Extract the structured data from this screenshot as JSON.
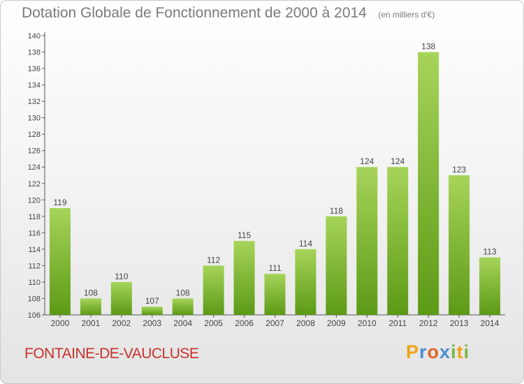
{
  "header": {
    "title": "Dotation Globale de Fonctionnement de 2000 à 2014",
    "subtitle": "(en milliers d'€)"
  },
  "footer": {
    "city": "FONTAINE-DE-VAUCLUSE",
    "brand": "Proxiti"
  },
  "colors": {
    "bar_light": "#a6d45a",
    "bar_dark": "#5c9a16",
    "title": "#7a7a7a",
    "city": "#c8312b"
  },
  "chart_data": {
    "type": "bar",
    "title": "Dotation Globale de Fonctionnement de 2000 à 2014",
    "subtitle": "(en milliers d'€)",
    "categories": [
      "2000",
      "2001",
      "2002",
      "2003",
      "2004",
      "2005",
      "2006",
      "2007",
      "2008",
      "2009",
      "2010",
      "2011",
      "2012",
      "2013",
      "2014"
    ],
    "values": [
      119,
      108,
      110,
      107,
      108,
      112,
      115,
      111,
      114,
      118,
      124,
      124,
      138,
      123,
      113
    ],
    "ylim": [
      106,
      140
    ],
    "yticks": [
      106,
      108,
      110,
      112,
      114,
      116,
      118,
      120,
      122,
      124,
      126,
      128,
      130,
      132,
      134,
      136,
      138,
      140
    ],
    "grid": false,
    "xlabel": "",
    "ylabel": ""
  }
}
